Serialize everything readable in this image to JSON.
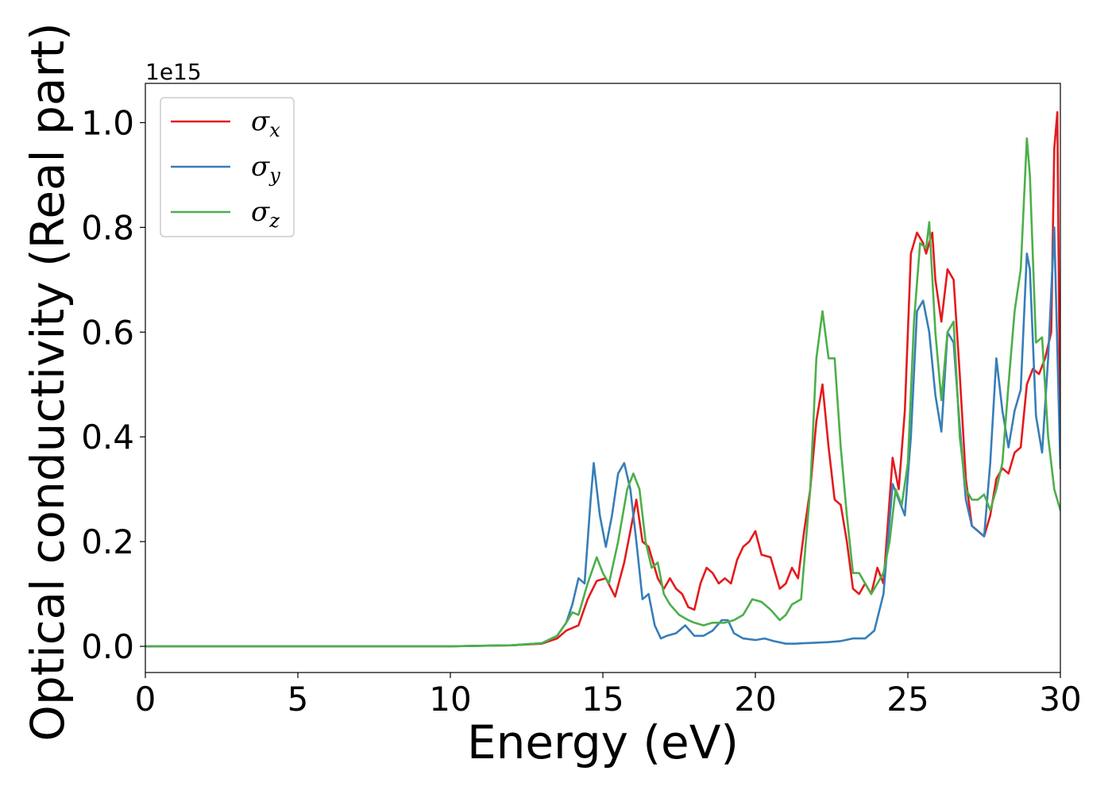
{
  "chart_data": {
    "type": "line",
    "xlabel": "Energy (eV)",
    "ylabel": "Optical conductivity (Real part)",
    "y_offset_label": "1e15",
    "xlim": [
      0,
      30
    ],
    "ylim": [
      -0.05,
      1.075
    ],
    "x_ticks": [
      0,
      5,
      10,
      15,
      20,
      25,
      30
    ],
    "x_tick_labels": [
      "0",
      "5",
      "10",
      "15",
      "20",
      "25",
      "30"
    ],
    "y_ticks": [
      0.0,
      0.2,
      0.4,
      0.6,
      0.8,
      1.0
    ],
    "y_tick_labels": [
      "0.0",
      "0.2",
      "0.4",
      "0.6",
      "0.8",
      "1.0"
    ],
    "grid": false,
    "legend_position": "top-left",
    "series": [
      {
        "name": "σx",
        "symbol": "σ",
        "subscript": "x",
        "color": "#e41a1c",
        "x": [
          0,
          10,
          12,
          13,
          13.5,
          13.8,
          14.2,
          14.5,
          14.8,
          15.1,
          15.4,
          15.7,
          15.9,
          16.1,
          16.3,
          16.5,
          16.8,
          17.0,
          17.2,
          17.4,
          17.6,
          17.8,
          18.0,
          18.2,
          18.4,
          18.6,
          18.8,
          19.0,
          19.2,
          19.4,
          19.6,
          19.8,
          20.0,
          20.2,
          20.5,
          20.8,
          21.0,
          21.2,
          21.4,
          21.6,
          21.8,
          22.0,
          22.2,
          22.4,
          22.6,
          22.8,
          23.0,
          23.2,
          23.4,
          23.6,
          23.8,
          24.0,
          24.2,
          24.5,
          24.7,
          24.9,
          25.1,
          25.3,
          25.5,
          25.6,
          25.8,
          25.9,
          26.1,
          26.3,
          26.5,
          26.7,
          26.9,
          27.1,
          27.3,
          27.5,
          27.7,
          27.9,
          28.1,
          28.3,
          28.5,
          28.7,
          28.9,
          29.1,
          29.3,
          29.5,
          29.7,
          29.8,
          29.9,
          30.0
        ],
        "y": [
          0.0,
          0.0,
          0.002,
          0.005,
          0.015,
          0.03,
          0.04,
          0.09,
          0.125,
          0.13,
          0.095,
          0.16,
          0.22,
          0.28,
          0.2,
          0.19,
          0.13,
          0.11,
          0.13,
          0.11,
          0.1,
          0.075,
          0.07,
          0.12,
          0.15,
          0.14,
          0.12,
          0.13,
          0.12,
          0.165,
          0.19,
          0.2,
          0.22,
          0.175,
          0.17,
          0.11,
          0.12,
          0.15,
          0.13,
          0.22,
          0.3,
          0.43,
          0.5,
          0.38,
          0.28,
          0.27,
          0.2,
          0.11,
          0.1,
          0.12,
          0.1,
          0.15,
          0.12,
          0.36,
          0.3,
          0.45,
          0.75,
          0.79,
          0.77,
          0.75,
          0.79,
          0.7,
          0.62,
          0.72,
          0.7,
          0.52,
          0.32,
          0.23,
          0.22,
          0.21,
          0.25,
          0.32,
          0.34,
          0.33,
          0.37,
          0.38,
          0.5,
          0.53,
          0.52,
          0.55,
          0.6,
          0.95,
          1.02,
          0.35
        ]
      },
      {
        "name": "σy",
        "symbol": "σ",
        "subscript": "y",
        "color": "#377eb8",
        "x": [
          0,
          10,
          12,
          13,
          13.5,
          13.8,
          14.0,
          14.2,
          14.4,
          14.6,
          14.7,
          14.9,
          15.1,
          15.3,
          15.5,
          15.7,
          15.9,
          16.1,
          16.3,
          16.5,
          16.7,
          16.9,
          17.1,
          17.4,
          17.7,
          18.0,
          18.3,
          18.6,
          18.9,
          19.1,
          19.3,
          19.6,
          20.0,
          20.3,
          20.6,
          21.0,
          21.3,
          21.6,
          22.0,
          22.4,
          22.8,
          23.2,
          23.6,
          23.9,
          24.2,
          24.5,
          24.7,
          24.9,
          25.1,
          25.3,
          25.5,
          25.7,
          25.9,
          26.1,
          26.3,
          26.5,
          26.7,
          26.9,
          27.1,
          27.3,
          27.5,
          27.7,
          27.9,
          28.1,
          28.3,
          28.5,
          28.7,
          28.9,
          29.0,
          29.2,
          29.4,
          29.6,
          29.8,
          30.0
        ],
        "y": [
          0.0,
          0.0,
          0.002,
          0.006,
          0.02,
          0.045,
          0.08,
          0.13,
          0.12,
          0.28,
          0.35,
          0.25,
          0.19,
          0.25,
          0.33,
          0.35,
          0.3,
          0.2,
          0.09,
          0.1,
          0.04,
          0.015,
          0.02,
          0.025,
          0.04,
          0.02,
          0.02,
          0.03,
          0.05,
          0.05,
          0.025,
          0.015,
          0.012,
          0.015,
          0.01,
          0.005,
          0.005,
          0.006,
          0.007,
          0.008,
          0.01,
          0.015,
          0.015,
          0.03,
          0.1,
          0.31,
          0.28,
          0.25,
          0.4,
          0.64,
          0.66,
          0.6,
          0.48,
          0.41,
          0.6,
          0.58,
          0.42,
          0.28,
          0.23,
          0.22,
          0.21,
          0.35,
          0.55,
          0.45,
          0.38,
          0.45,
          0.49,
          0.75,
          0.72,
          0.44,
          0.37,
          0.55,
          0.8,
          0.34
        ]
      },
      {
        "name": "σz",
        "symbol": "σ",
        "subscript": "z",
        "color": "#4daf4a",
        "x": [
          0,
          10,
          12,
          13,
          13.5,
          13.8,
          14.0,
          14.2,
          14.5,
          14.8,
          15.0,
          15.2,
          15.5,
          15.8,
          16.0,
          16.2,
          16.4,
          16.6,
          16.8,
          17.0,
          17.2,
          17.5,
          17.8,
          18.0,
          18.3,
          18.6,
          19.0,
          19.3,
          19.6,
          19.9,
          20.2,
          20.5,
          20.8,
          21.0,
          21.2,
          21.5,
          21.8,
          22.0,
          22.2,
          22.4,
          22.6,
          22.8,
          23.0,
          23.2,
          23.4,
          23.6,
          23.8,
          24.0,
          24.2,
          24.4,
          24.6,
          24.8,
          25.0,
          25.2,
          25.4,
          25.6,
          25.7,
          25.9,
          26.1,
          26.3,
          26.5,
          26.7,
          26.9,
          27.1,
          27.3,
          27.5,
          27.7,
          27.9,
          28.1,
          28.3,
          28.5,
          28.7,
          28.9,
          29.0,
          29.2,
          29.4,
          29.6,
          29.8,
          30.0
        ],
        "y": [
          0.0,
          0.0,
          0.002,
          0.006,
          0.02,
          0.045,
          0.065,
          0.06,
          0.12,
          0.17,
          0.14,
          0.12,
          0.2,
          0.3,
          0.33,
          0.3,
          0.2,
          0.15,
          0.16,
          0.1,
          0.08,
          0.06,
          0.05,
          0.045,
          0.04,
          0.045,
          0.045,
          0.05,
          0.06,
          0.09,
          0.085,
          0.07,
          0.05,
          0.06,
          0.08,
          0.09,
          0.3,
          0.55,
          0.64,
          0.55,
          0.55,
          0.38,
          0.25,
          0.14,
          0.14,
          0.12,
          0.1,
          0.12,
          0.14,
          0.2,
          0.3,
          0.27,
          0.35,
          0.62,
          0.77,
          0.76,
          0.81,
          0.6,
          0.47,
          0.6,
          0.62,
          0.4,
          0.3,
          0.28,
          0.28,
          0.29,
          0.26,
          0.3,
          0.35,
          0.5,
          0.64,
          0.72,
          0.97,
          0.9,
          0.58,
          0.59,
          0.4,
          0.3,
          0.26
        ]
      }
    ]
  }
}
